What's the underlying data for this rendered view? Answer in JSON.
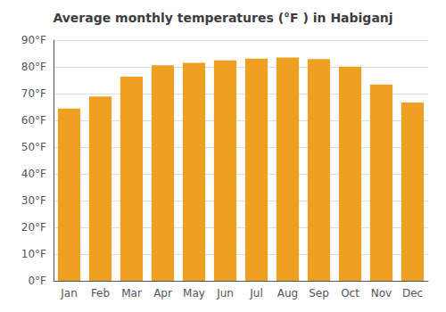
{
  "chart_data": {
    "type": "bar",
    "title": "Average monthly temperatures (°F ) in Habiganj",
    "categories": [
      "Jan",
      "Feb",
      "Mar",
      "Apr",
      "May",
      "Jun",
      "Jul",
      "Aug",
      "Sep",
      "Oct",
      "Nov",
      "Dec"
    ],
    "values": [
      64.4,
      68.9,
      76.3,
      80.6,
      81.5,
      82.4,
      83.1,
      83.5,
      82.9,
      80.1,
      73.4,
      66.7
    ],
    "color": "#F0A020",
    "ylim": [
      0,
      90
    ],
    "yticks": [
      {
        "value": 0,
        "label": "0°F"
      },
      {
        "value": 10,
        "label": "10°F"
      },
      {
        "value": 20,
        "label": "20°F"
      },
      {
        "value": 30,
        "label": "30°F"
      },
      {
        "value": 40,
        "label": "40°F"
      },
      {
        "value": 50,
        "label": "50°F"
      },
      {
        "value": 60,
        "label": "60°F"
      },
      {
        "value": 70,
        "label": "70°F"
      },
      {
        "value": 80,
        "label": "80°F"
      },
      {
        "value": 90,
        "label": "90°F"
      }
    ],
    "grid": true
  }
}
